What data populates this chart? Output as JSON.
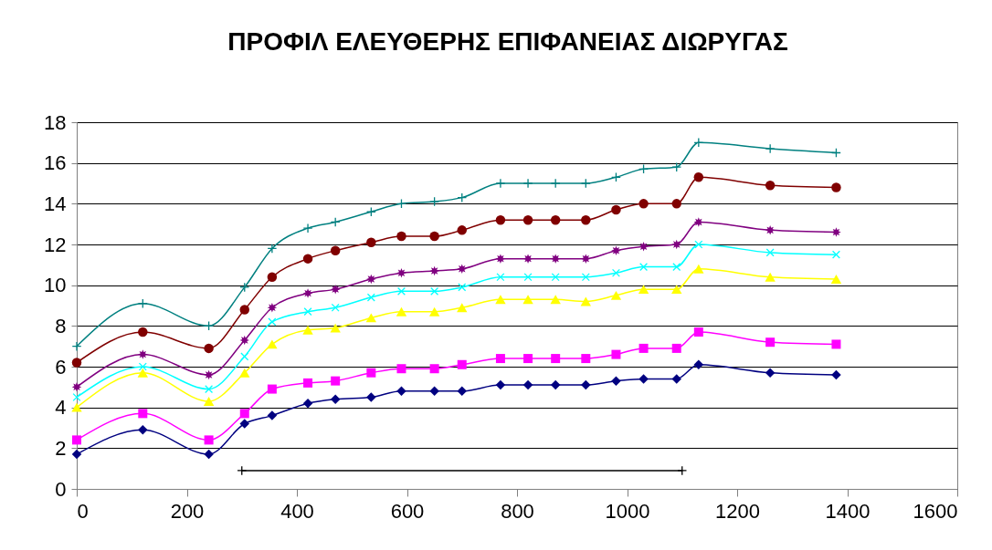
{
  "chart_data": {
    "type": "line",
    "title": "ΠΡΟΦΙΛ ΕΛΕΥΘΕΡΗΣ ΕΠΙΦΑΝΕΙΑΣ ΔΙΩΡΥΓΑΣ",
    "x": [
      0,
      120,
      240,
      305,
      355,
      420,
      470,
      535,
      590,
      650,
      700,
      770,
      820,
      870,
      925,
      980,
      1030,
      1090,
      1130,
      1260,
      1380
    ],
    "xlim": [
      0,
      1600
    ],
    "xticks": [
      0,
      200,
      400,
      600,
      800,
      1000,
      1200,
      1400,
      1600
    ],
    "ylim": [
      0,
      18
    ],
    "yticks": [
      0,
      2,
      4,
      6,
      8,
      10,
      12,
      14,
      16,
      18
    ],
    "grid": "y",
    "series": [
      {
        "color": "#000080",
        "marker": "diamond",
        "values": [
          1.7,
          2.9,
          1.7,
          3.2,
          3.6,
          4.2,
          4.4,
          4.5,
          4.8,
          4.8,
          4.8,
          5.1,
          5.1,
          5.1,
          5.1,
          5.3,
          5.4,
          5.4,
          6.1,
          5.7,
          5.6
        ]
      },
      {
        "color": "#ff00ff",
        "marker": "square",
        "values": [
          2.4,
          3.7,
          2.4,
          3.7,
          4.9,
          5.2,
          5.3,
          5.7,
          5.9,
          5.9,
          6.1,
          6.4,
          6.4,
          6.4,
          6.4,
          6.6,
          6.9,
          6.9,
          7.7,
          7.2,
          7.1
        ]
      },
      {
        "color": "#ffff00",
        "marker": "triangle",
        "values": [
          4.0,
          5.7,
          4.3,
          5.7,
          7.1,
          7.8,
          7.9,
          8.4,
          8.7,
          8.7,
          8.9,
          9.3,
          9.3,
          9.3,
          9.2,
          9.5,
          9.8,
          9.8,
          10.8,
          10.4,
          10.3
        ]
      },
      {
        "color": "#00ffff",
        "marker": "x",
        "values": [
          4.5,
          6.0,
          4.9,
          6.5,
          8.2,
          8.7,
          8.9,
          9.4,
          9.7,
          9.7,
          9.9,
          10.4,
          10.4,
          10.4,
          10.4,
          10.6,
          10.9,
          10.9,
          12.0,
          11.6,
          11.5
        ]
      },
      {
        "color": "#800080",
        "marker": "star",
        "values": [
          5.0,
          6.6,
          5.6,
          7.3,
          8.9,
          9.6,
          9.8,
          10.3,
          10.6,
          10.7,
          10.8,
          11.3,
          11.3,
          11.3,
          11.3,
          11.7,
          11.9,
          12.0,
          13.1,
          12.7,
          12.6
        ]
      },
      {
        "color": "#800000",
        "marker": "circle",
        "values": [
          6.2,
          7.7,
          6.9,
          8.8,
          10.4,
          11.3,
          11.7,
          12.1,
          12.4,
          12.4,
          12.7,
          13.2,
          13.2,
          13.2,
          13.2,
          13.7,
          14.0,
          14.0,
          15.3,
          14.9,
          14.8
        ]
      },
      {
        "color": "#008080",
        "marker": "cross",
        "values": [
          7.0,
          9.1,
          8.0,
          9.9,
          11.8,
          12.8,
          13.1,
          13.6,
          14.0,
          14.1,
          14.3,
          15.0,
          15.0,
          15.0,
          15.0,
          15.3,
          15.7,
          15.8,
          17.0,
          16.7,
          16.5
        ]
      },
      {
        "color": "#000000",
        "marker": "cross",
        "x": [
          300,
          1100
        ],
        "values": [
          0.9,
          0.9
        ]
      }
    ]
  }
}
